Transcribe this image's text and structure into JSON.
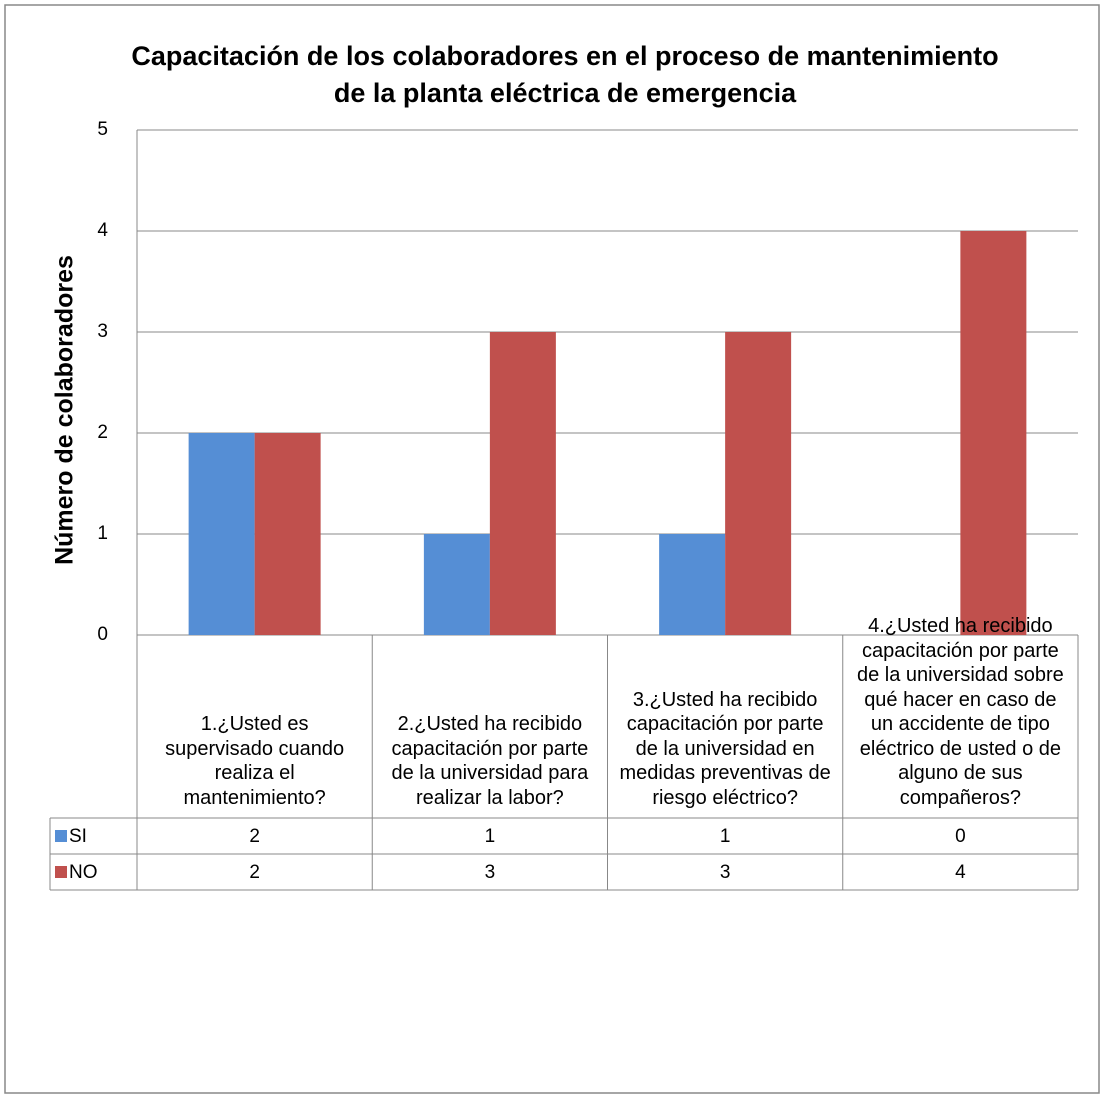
{
  "chart_data": {
    "type": "bar",
    "title": "Capacitación de los colaboradores en el proceso de mantenimiento de la planta eléctrica de emergencia",
    "y_label": "Número de colaboradores",
    "categories": [
      "1.¿Usted es supervisado cuando realiza el mantenimiento?",
      "2.¿Usted ha recibido capacitación por parte de la universidad para realizar la labor?",
      "3.¿Usted ha recibido capacitación por parte de la universidad en medidas preventivas de riesgo eléctrico?",
      "4.¿Usted ha recibido capacitación por parte de la universidad sobre  qué hacer en caso de un accidente de tipo eléctrico de usted o de alguno de sus compañeros?"
    ],
    "series": [
      {
        "name": "SI",
        "color": "#558ed5",
        "values": [
          2,
          1,
          1,
          0
        ]
      },
      {
        "name": "NO",
        "color": "#c0504d",
        "values": [
          2,
          3,
          3,
          4
        ]
      }
    ],
    "ylim": [
      0,
      5
    ],
    "yticks": [
      0,
      1,
      2,
      3,
      4,
      5
    ],
    "grid": true,
    "data_table": true
  }
}
